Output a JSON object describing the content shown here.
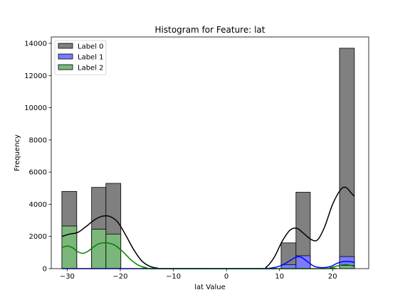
{
  "chart_data": {
    "type": "histogram",
    "title": "Histogram for Feature: lat",
    "xlabel": "lat Value",
    "ylabel": "Frequency",
    "xlim": [
      -33,
      26.8
    ],
    "ylim": [
      0,
      14400
    ],
    "xticks": [
      -30,
      -20,
      -10,
      0,
      10,
      20
    ],
    "xtick_labels": [
      "−30",
      "−20",
      "−10",
      "0",
      "10",
      "20"
    ],
    "yticks": [
      0,
      2000,
      4000,
      6000,
      8000,
      10000,
      12000,
      14000
    ],
    "ytick_labels": [
      "0",
      "2000",
      "4000",
      "6000",
      "8000",
      "10000",
      "12000",
      "14000"
    ],
    "legend_position": "upper-left",
    "grid": false,
    "bin_edges": [
      -31.0,
      -28.2,
      -25.4,
      -22.7,
      -19.9,
      -17.2,
      -14.4,
      -11.7,
      -8.9,
      -6.2,
      -3.4,
      -0.7,
      2.1,
      4.8,
      7.6,
      10.3,
      13.1,
      15.8,
      18.6,
      21.3,
      24.1
    ],
    "series": [
      {
        "name": "Label 0",
        "fill": "#808080",
        "line": "#000000",
        "values": [
          4800,
          0,
          5050,
          5300,
          0,
          0,
          0,
          0,
          0,
          0,
          0,
          0,
          0,
          0,
          0,
          1600,
          4750,
          0,
          0,
          13700
        ],
        "kde": [
          [
            -31,
            2000
          ],
          [
            -29.5,
            2150
          ],
          [
            -28,
            2250
          ],
          [
            -26.5,
            2600
          ],
          [
            -25,
            3000
          ],
          [
            -23.5,
            3250
          ],
          [
            -22,
            3250
          ],
          [
            -20.5,
            2900
          ],
          [
            -19,
            2100
          ],
          [
            -17.5,
            1200
          ],
          [
            -16,
            500
          ],
          [
            -14.5,
            150
          ],
          [
            -13,
            30
          ],
          [
            -11,
            0
          ],
          [
            6,
            0
          ],
          [
            7.5,
            100
          ],
          [
            9,
            700
          ],
          [
            10.5,
            1700
          ],
          [
            12,
            2400
          ],
          [
            13.3,
            2500
          ],
          [
            14.5,
            2200
          ],
          [
            16,
            1800
          ],
          [
            17.2,
            1800
          ],
          [
            18.5,
            2600
          ],
          [
            20,
            4000
          ],
          [
            21.5,
            4900
          ],
          [
            22.5,
            5050
          ],
          [
            23.5,
            4700
          ],
          [
            24.1,
            4500
          ]
        ]
      },
      {
        "name": "Label 1",
        "fill": "#7b7bff",
        "line": "#0000ff",
        "values": [
          0,
          0,
          0,
          0,
          0,
          0,
          0,
          0,
          0,
          0,
          0,
          0,
          0,
          0,
          0,
          250,
          800,
          0,
          0,
          750
        ],
        "kde": [
          [
            -31,
            0
          ],
          [
            6,
            0
          ],
          [
            8,
            20
          ],
          [
            10,
            150
          ],
          [
            11.5,
            400
          ],
          [
            13,
            700
          ],
          [
            14,
            720
          ],
          [
            15,
            500
          ],
          [
            16.5,
            150
          ],
          [
            18,
            60
          ],
          [
            19.5,
            120
          ],
          [
            21,
            350
          ],
          [
            22.5,
            450
          ],
          [
            24.1,
            400
          ]
        ]
      },
      {
        "name": "Label 2",
        "fill": "#7ab87a",
        "line": "#008000",
        "values": [
          2650,
          0,
          2450,
          2150,
          0,
          0,
          0,
          0,
          0,
          0,
          0,
          0,
          0,
          0,
          0,
          0,
          0,
          0,
          0,
          200
        ],
        "kde": [
          [
            -31,
            1300
          ],
          [
            -30,
            1400
          ],
          [
            -29,
            1300
          ],
          [
            -28,
            1050
          ],
          [
            -27,
            950
          ],
          [
            -26,
            1100
          ],
          [
            -25,
            1350
          ],
          [
            -24,
            1550
          ],
          [
            -22.5,
            1600
          ],
          [
            -21,
            1450
          ],
          [
            -19.5,
            1050
          ],
          [
            -18,
            550
          ],
          [
            -16.5,
            200
          ],
          [
            -15,
            50
          ],
          [
            -13,
            0
          ],
          [
            18,
            0
          ],
          [
            19.5,
            50
          ],
          [
            21,
            180
          ],
          [
            22.5,
            250
          ],
          [
            24.1,
            150
          ]
        ]
      }
    ]
  }
}
